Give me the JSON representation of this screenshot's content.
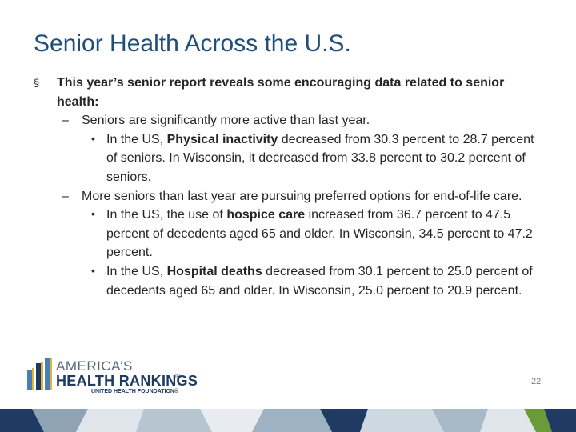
{
  "slide": {
    "title": "Senior Health Across the U.S.",
    "page_number": "22"
  },
  "bullets": {
    "marker_l1": "§",
    "marker_l2": "–",
    "marker_l3": "•",
    "intro": "This year’s senior report reveals some encouraging data related to senior health:",
    "sub1": "Seniors are significantly more active than last year.",
    "item1": {
      "pre": "In the US, ",
      "bold": "Physical inactivity",
      "post": " decreased from 30.3 percent to 28.7 percent of seniors. In Wisconsin, it decreased from 33.8 percent to 30.2 percent of seniors."
    },
    "sub2": "More seniors than last year are pursuing preferred options for end-of-life care.",
    "item2": {
      "pre": "In the US, the use of ",
      "bold": "hospice care",
      "post": " increased from 36.7 percent to 47.5 percent of decedents aged 65 and older.  In Wisconsin, 34.5 percent to 47.2 percent."
    },
    "item3": {
      "pre": "In the US, ",
      "bold": "Hospital deaths",
      "post": " decreased from 30.1 percent to 25.0 percent of decedents aged 65 and older. In Wisconsin, 25.0 percent to 20.9 percent."
    }
  },
  "logo": {
    "line1": "AMERICA’S",
    "line2": "HEALTH RANKINGS",
    "registered": "®",
    "line3": "UNITED HEALTH FOUNDATION®"
  },
  "colors": {
    "title": "#1f4e79",
    "text": "#262626",
    "logo_navy": "#1f3a63",
    "bar_gold": "#e2b23a",
    "bar_blue": "#4a7fb5",
    "band_navy": "#1f3a63",
    "band_green": "#6a9a3a"
  }
}
